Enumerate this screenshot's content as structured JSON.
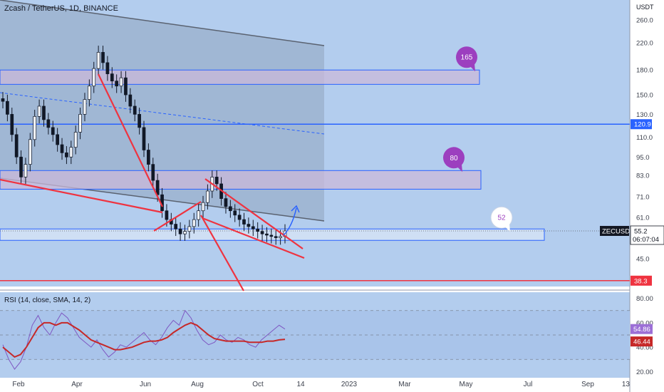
{
  "header": {
    "title": "Zcash / TetherUS, 1D, BINANCE",
    "rsi_title": "RSI (14, close, SMA, 14, 2)",
    "currency": "USDT"
  },
  "colors": {
    "background": "#b3cdee",
    "rsi_background": "#a9c4ea",
    "channel": "#6f7e93",
    "trend_red": "#ef3340",
    "blue_line": "#2962ff",
    "box_fill": "#c9b8d9",
    "bubble_purple": "#9c3fbf",
    "rsi_line": "#7e57c2",
    "rsi_ma": "#c62828"
  },
  "chart_data": [
    {
      "type": "candlestick",
      "symbol": "ZECUSDT",
      "title": "Zcash / TetherUS, 1D, BINANCE",
      "ylabel": "USDT",
      "yscale": "log",
      "ylim": [
        34,
        280
      ],
      "yticks": [
        260.0,
        220.0,
        180.0,
        150.0,
        130.0,
        110.0,
        95.0,
        83.0,
        71.0,
        61.0,
        45.0
      ],
      "xticks": [
        "Feb",
        "Apr",
        "Jun",
        "Aug",
        "Oct",
        "14",
        "2023",
        "Mar",
        "May",
        "Jul",
        "Sep",
        "13"
      ],
      "closes": [
        143,
        130,
        112,
        95,
        82,
        90,
        108,
        128,
        138,
        125,
        118,
        112,
        104,
        98,
        95,
        102,
        114,
        130,
        145,
        160,
        182,
        205,
        190,
        175,
        166,
        160,
        170,
        150,
        138,
        130,
        118,
        100,
        90,
        80,
        72,
        64,
        60,
        58,
        56,
        54,
        55,
        57,
        60,
        64,
        68,
        74,
        82,
        78,
        70,
        66,
        64,
        62,
        60,
        58,
        57,
        56,
        55,
        54,
        53.5,
        53,
        52.5,
        53,
        55.2
      ],
      "last_price": {
        "label": "ZECUSDT",
        "value": "55.2",
        "countdown": "06:07:04"
      },
      "price_tags": [
        {
          "value": "120.9",
          "color": "#2962ff"
        },
        {
          "value": "38.3",
          "color": "#ef3340"
        }
      ],
      "zones": [
        {
          "top": 180,
          "bottom": 162,
          "label": "165"
        },
        {
          "top": 86,
          "bottom": 75,
          "label": "80"
        },
        {
          "top": 56,
          "bottom": 51.5,
          "label": "52"
        }
      ],
      "levels": [
        120.9,
        38.3
      ]
    },
    {
      "type": "line",
      "name": "RSI",
      "title": "RSI (14, close, SMA, 14, 2)",
      "ylim": [
        15,
        85
      ],
      "yticks": [
        80.0,
        60.0,
        40.0,
        20.0
      ],
      "bands": [
        70,
        50,
        30
      ],
      "series": [
        {
          "name": "RSI",
          "values": [
            42,
            30,
            22,
            28,
            40,
            58,
            66,
            56,
            50,
            60,
            68,
            64,
            56,
            48,
            44,
            40,
            46,
            38,
            32,
            36,
            42,
            40,
            44,
            48,
            52,
            46,
            42,
            48,
            56,
            62,
            58,
            70,
            64,
            54,
            46,
            42,
            44,
            50,
            46,
            44,
            48,
            46,
            42,
            40,
            46,
            50,
            54,
            58,
            54.86
          ]
        },
        {
          "name": "MA",
          "values": [
            40,
            36,
            32,
            34,
            40,
            48,
            56,
            60,
            60,
            58,
            60,
            60,
            57,
            54,
            50,
            46,
            44,
            42,
            40,
            38,
            38,
            39,
            40,
            42,
            44,
            45,
            45,
            46,
            48,
            52,
            55,
            58,
            60,
            58,
            54,
            50,
            47,
            46,
            45,
            45,
            45,
            45,
            44,
            44,
            44,
            45,
            45,
            46,
            46.44
          ]
        }
      ],
      "tags": [
        {
          "value": "54.86",
          "color": "#9c6fd6"
        },
        {
          "value": "46.44",
          "color": "#c62828"
        }
      ]
    }
  ]
}
